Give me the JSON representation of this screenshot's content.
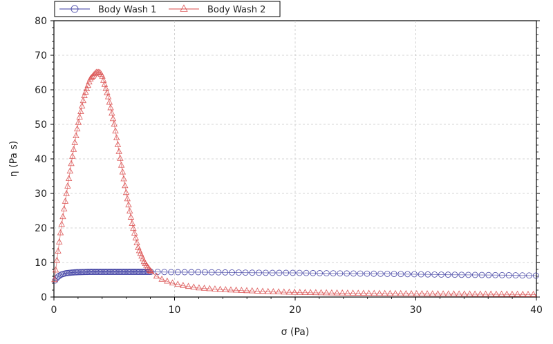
{
  "chart_data": {
    "type": "scatter",
    "title": "",
    "xlabel": "σ (Pa)",
    "ylabel": "η (Pa s)",
    "xlim": [
      0,
      40
    ],
    "ylim": [
      0,
      80
    ],
    "xticks": [
      0,
      10,
      20,
      30,
      40
    ],
    "yticks": [
      0,
      10,
      20,
      30,
      40,
      50,
      60,
      70,
      80
    ],
    "grid": true,
    "legend_position": "top-left",
    "series": [
      {
        "name": "Body Wash 1",
        "marker": "circle",
        "color": "#3a3aa0",
        "x": [
          0.1,
          0.3,
          0.6,
          1,
          1.5,
          2,
          3,
          4,
          5,
          6,
          8,
          10,
          12,
          15,
          18,
          20,
          22,
          25,
          28,
          30,
          32,
          35,
          38,
          40
        ],
        "y": [
          4.8,
          5.8,
          6.5,
          6.9,
          7.1,
          7.2,
          7.3,
          7.3,
          7.3,
          7.3,
          7.3,
          7.2,
          7.2,
          7.1,
          7.0,
          7.0,
          6.9,
          6.8,
          6.7,
          6.6,
          6.5,
          6.4,
          6.3,
          6.2
        ]
      },
      {
        "name": "Body Wash 2",
        "marker": "triangle",
        "color": "#d94a4a",
        "x": [
          0.05,
          0.3,
          0.6,
          1,
          1.5,
          2,
          2.5,
          3,
          3.5,
          3.8,
          4,
          4.5,
          5,
          5.5,
          6,
          6.5,
          7,
          7.5,
          8,
          8.5,
          9,
          10,
          11,
          12,
          14,
          16,
          18,
          20,
          22,
          25,
          28,
          30,
          32,
          35,
          38,
          40
        ],
        "y": [
          5,
          12,
          20,
          29,
          40,
          50,
          58,
          63,
          65,
          65,
          64,
          58,
          50,
          40,
          30,
          21,
          14,
          10,
          7.5,
          6,
          5,
          3.8,
          3.1,
          2.6,
          2.1,
          1.8,
          1.5,
          1.3,
          1.2,
          1.05,
          0.95,
          0.9,
          0.85,
          0.8,
          0.75,
          0.7
        ]
      }
    ]
  }
}
